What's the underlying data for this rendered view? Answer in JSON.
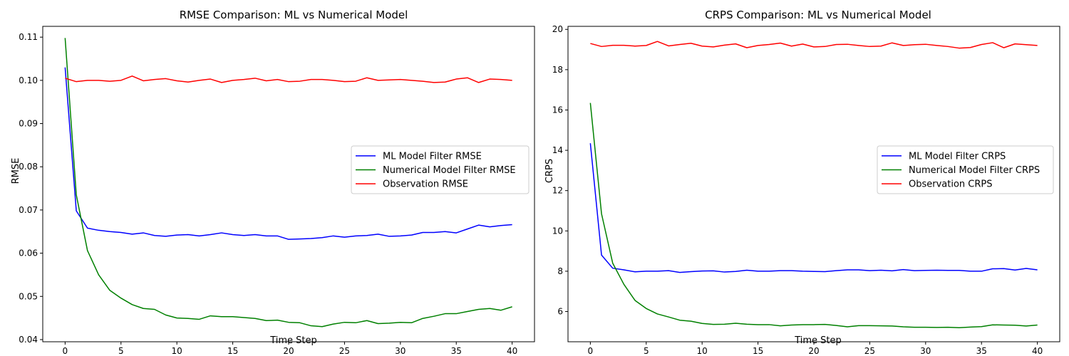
{
  "chart_data": [
    {
      "type": "line",
      "title": "RMSE Comparison: ML vs Numerical Model",
      "xlabel": "Time Step",
      "ylabel": "RMSE",
      "xlim": [
        -2,
        42
      ],
      "ylim": [
        0.0395,
        0.1125
      ],
      "xticks": [
        0,
        5,
        10,
        15,
        20,
        25,
        30,
        35,
        40
      ],
      "xtick_labels": [
        "0",
        "5",
        "10",
        "15",
        "20",
        "25",
        "30",
        "35",
        "40"
      ],
      "yticks": [
        0.04,
        0.05,
        0.06,
        0.07,
        0.08,
        0.09,
        0.1,
        0.11
      ],
      "ytick_labels": [
        "0.04",
        "0.05",
        "0.06",
        "0.07",
        "0.08",
        "0.09",
        "0.10",
        "0.11"
      ],
      "grid": false,
      "legend_position": "center-right",
      "x": [
        0,
        1,
        2,
        3,
        4,
        5,
        6,
        7,
        8,
        9,
        10,
        11,
        12,
        13,
        14,
        15,
        16,
        17,
        18,
        19,
        20,
        21,
        22,
        23,
        24,
        25,
        26,
        27,
        28,
        29,
        30,
        31,
        32,
        33,
        34,
        35,
        36,
        37,
        38,
        39,
        40
      ],
      "series": [
        {
          "name": "ML Model Filter RMSE",
          "color": "#0000ff",
          "values": [
            0.103,
            0.0698,
            0.0658,
            0.0653,
            0.065,
            0.0648,
            0.0644,
            0.0647,
            0.0641,
            0.0639,
            0.0642,
            0.0643,
            0.064,
            0.0643,
            0.0647,
            0.0643,
            0.0641,
            0.0643,
            0.064,
            0.064,
            0.0632,
            0.0633,
            0.0634,
            0.0636,
            0.064,
            0.0637,
            0.064,
            0.0641,
            0.0644,
            0.0639,
            0.064,
            0.0642,
            0.0648,
            0.0648,
            0.065,
            0.0647,
            0.0656,
            0.0665,
            0.0661,
            0.0664,
            0.0666
          ]
        },
        {
          "name": "Numerical Model Filter RMSE",
          "color": "#008000",
          "values": [
            0.1098,
            0.0735,
            0.0606,
            0.055,
            0.0514,
            0.0496,
            0.0481,
            0.0472,
            0.047,
            0.0457,
            0.045,
            0.0449,
            0.0447,
            0.0455,
            0.0453,
            0.0453,
            0.0451,
            0.0449,
            0.0444,
            0.0445,
            0.044,
            0.0439,
            0.0432,
            0.043,
            0.0436,
            0.044,
            0.0439,
            0.0444,
            0.0437,
            0.0438,
            0.044,
            0.0439,
            0.0449,
            0.0454,
            0.046,
            0.046,
            0.0465,
            0.047,
            0.0472,
            0.0468,
            0.0476
          ]
        },
        {
          "name": "Observation RMSE",
          "color": "#ff0000",
          "values": [
            0.1005,
            0.0997,
            0.1,
            0.1,
            0.0998,
            0.1,
            0.101,
            0.0999,
            0.1002,
            0.1004,
            0.0999,
            0.0996,
            0.1,
            0.1003,
            0.0995,
            0.1,
            0.1002,
            0.1005,
            0.0999,
            0.1002,
            0.0997,
            0.0998,
            0.1002,
            0.1002,
            0.1,
            0.0997,
            0.0998,
            0.1006,
            0.1,
            0.1001,
            0.1002,
            0.1,
            0.0998,
            0.0995,
            0.0996,
            0.1003,
            0.1006,
            0.0995,
            0.1003,
            0.1002,
            0.1
          ]
        }
      ]
    },
    {
      "type": "line",
      "title": "CRPS Comparison: ML vs Numerical Model",
      "xlabel": "Time Step",
      "ylabel": "CRPS",
      "xlim": [
        -2,
        42
      ],
      "ylim": [
        4.5,
        20.15
      ],
      "xticks": [
        0,
        5,
        10,
        15,
        20,
        25,
        30,
        35,
        40
      ],
      "xtick_labels": [
        "0",
        "5",
        "10",
        "15",
        "20",
        "25",
        "30",
        "35",
        "40"
      ],
      "yticks": [
        6,
        8,
        10,
        12,
        14,
        16,
        18,
        20
      ],
      "ytick_labels": [
        "6",
        "8",
        "10",
        "12",
        "14",
        "16",
        "18",
        "20"
      ],
      "grid": false,
      "legend_position": "center-right",
      "x": [
        0,
        1,
        2,
        3,
        4,
        5,
        6,
        7,
        8,
        9,
        10,
        11,
        12,
        13,
        14,
        15,
        16,
        17,
        18,
        19,
        20,
        21,
        22,
        23,
        24,
        25,
        26,
        27,
        28,
        29,
        30,
        31,
        32,
        33,
        34,
        35,
        36,
        37,
        38,
        39,
        40
      ],
      "series": [
        {
          "name": "ML Model Filter CRPS",
          "color": "#0000ff",
          "values": [
            14.35,
            8.8,
            8.15,
            8.07,
            7.97,
            8.0,
            8.0,
            8.03,
            7.94,
            7.98,
            8.01,
            8.02,
            7.96,
            7.99,
            8.05,
            8.0,
            8.0,
            8.03,
            8.03,
            8.0,
            7.99,
            7.98,
            8.03,
            8.07,
            8.07,
            8.03,
            8.05,
            8.02,
            8.08,
            8.03,
            8.04,
            8.05,
            8.04,
            8.04,
            8.0,
            8.0,
            8.12,
            8.13,
            8.06,
            8.14,
            8.07
          ]
        },
        {
          "name": "Numerical Model Filter CRPS",
          "color": "#008000",
          "values": [
            16.35,
            10.85,
            8.4,
            7.35,
            6.55,
            6.15,
            5.88,
            5.73,
            5.57,
            5.52,
            5.41,
            5.36,
            5.37,
            5.42,
            5.37,
            5.35,
            5.35,
            5.29,
            5.33,
            5.35,
            5.35,
            5.36,
            5.31,
            5.24,
            5.3,
            5.3,
            5.29,
            5.28,
            5.24,
            5.22,
            5.22,
            5.21,
            5.22,
            5.2,
            5.23,
            5.25,
            5.34,
            5.33,
            5.32,
            5.28,
            5.33
          ]
        },
        {
          "name": "Observation CRPS",
          "color": "#ff0000",
          "values": [
            19.3,
            19.15,
            19.21,
            19.21,
            19.17,
            19.2,
            19.4,
            19.18,
            19.25,
            19.31,
            19.17,
            19.13,
            19.22,
            19.28,
            19.09,
            19.2,
            19.25,
            19.32,
            19.17,
            19.27,
            19.13,
            19.15,
            19.25,
            19.26,
            19.2,
            19.15,
            19.17,
            19.33,
            19.2,
            19.24,
            19.26,
            19.2,
            19.15,
            19.07,
            19.1,
            19.25,
            19.34,
            19.09,
            19.28,
            19.24,
            19.2
          ]
        }
      ]
    }
  ]
}
